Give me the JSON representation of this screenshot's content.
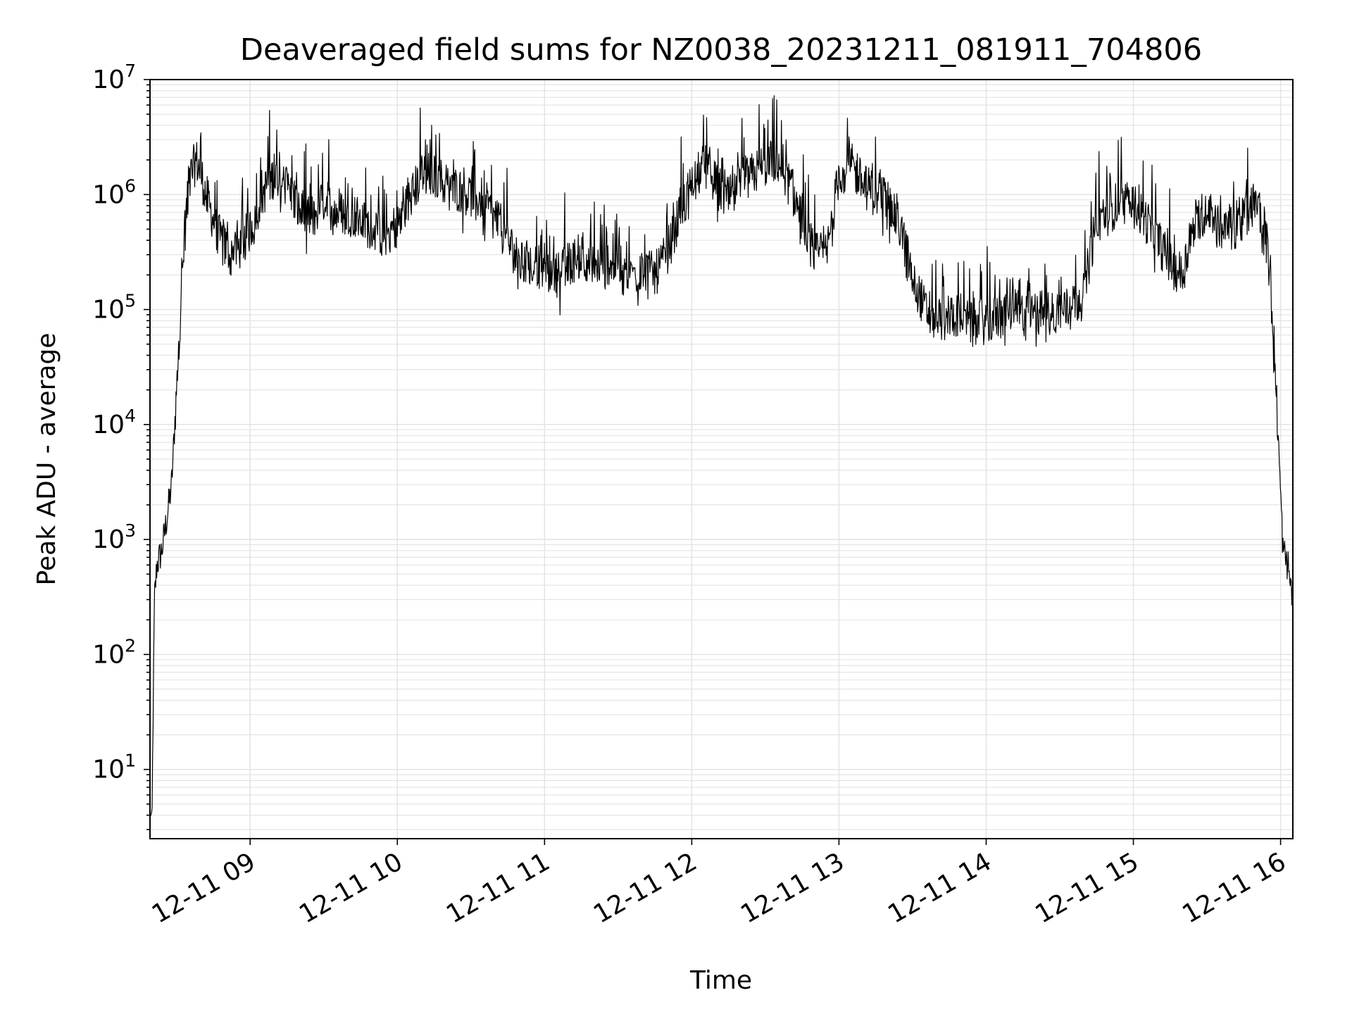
{
  "chart_data": {
    "type": "line",
    "title": "Deaveraged field sums for NZ0038_20231211_081911_704806",
    "xlabel": "Time",
    "ylabel": "Peak ADU - average",
    "yscale": "log",
    "ylim": [
      2.5,
      10000000.0
    ],
    "xlim": [
      "2023-12-11 08:19:11",
      "2023-12-11 16:05:00"
    ],
    "x_ticks": [
      {
        "value": "2023-12-11 09:00",
        "label": "12-11 09"
      },
      {
        "value": "2023-12-11 10:00",
        "label": "12-11 10"
      },
      {
        "value": "2023-12-11 11:00",
        "label": "12-11 11"
      },
      {
        "value": "2023-12-11 12:00",
        "label": "12-11 12"
      },
      {
        "value": "2023-12-11 13:00",
        "label": "12-11 13"
      },
      {
        "value": "2023-12-11 14:00",
        "label": "12-11 14"
      },
      {
        "value": "2023-12-11 15:00",
        "label": "12-11 15"
      },
      {
        "value": "2023-12-11 16:00",
        "label": "12-11 16"
      }
    ],
    "y_ticks": [
      {
        "value": 10,
        "base": "10",
        "exp": "1"
      },
      {
        "value": 100,
        "base": "10",
        "exp": "2"
      },
      {
        "value": 1000,
        "base": "10",
        "exp": "3"
      },
      {
        "value": 10000,
        "base": "10",
        "exp": "4"
      },
      {
        "value": 100000,
        "base": "10",
        "exp": "5"
      },
      {
        "value": 1000000,
        "base": "10",
        "exp": "6"
      },
      {
        "value": 10000000,
        "base": "10",
        "exp": "7"
      }
    ],
    "grid": "major and minor",
    "line_color": "#000000",
    "series": [
      {
        "x": [
          "2023-12-11 08:19:11",
          "2023-12-11 08:20",
          "2023-12-11 08:21",
          "2023-12-11 08:22",
          "2023-12-11 08:24",
          "2023-12-11 08:26",
          "2023-12-11 08:28",
          "2023-12-11 08:30",
          "2023-12-11 08:32",
          "2023-12-11 08:34",
          "2023-12-11 08:36",
          "2023-12-11 08:38",
          "2023-12-11 08:40",
          "2023-12-11 08:42",
          "2023-12-11 08:45",
          "2023-12-11 08:48",
          "2023-12-11 08:52",
          "2023-12-11 08:56",
          "2023-12-11 09:00",
          "2023-12-11 09:05",
          "2023-12-11 09:10",
          "2023-12-11 09:15",
          "2023-12-11 09:20",
          "2023-12-11 09:25",
          "2023-12-11 09:30",
          "2023-12-11 09:35",
          "2023-12-11 09:40",
          "2023-12-11 09:45",
          "2023-12-11 09:50",
          "2023-12-11 09:55",
          "2023-12-11 10:00",
          "2023-12-11 10:05",
          "2023-12-11 10:10",
          "2023-12-11 10:15",
          "2023-12-11 10:20",
          "2023-12-11 10:25",
          "2023-12-11 10:30",
          "2023-12-11 10:35",
          "2023-12-11 10:40",
          "2023-12-11 10:45",
          "2023-12-11 10:50",
          "2023-12-11 10:55",
          "2023-12-11 11:00",
          "2023-12-11 11:05",
          "2023-12-11 11:10",
          "2023-12-11 11:15",
          "2023-12-11 11:20",
          "2023-12-11 11:25",
          "2023-12-11 11:30",
          "2023-12-11 11:35",
          "2023-12-11 11:40",
          "2023-12-11 11:45",
          "2023-12-11 11:50",
          "2023-12-11 11:55",
          "2023-12-11 12:00",
          "2023-12-11 12:05",
          "2023-12-11 12:10",
          "2023-12-11 12:15",
          "2023-12-11 12:20",
          "2023-12-11 12:25",
          "2023-12-11 12:30",
          "2023-12-11 12:35",
          "2023-12-11 12:40",
          "2023-12-11 12:45",
          "2023-12-11 12:50",
          "2023-12-11 12:55",
          "2023-12-11 13:00",
          "2023-12-11 13:05",
          "2023-12-11 13:10",
          "2023-12-11 13:15",
          "2023-12-11 13:20",
          "2023-12-11 13:25",
          "2023-12-11 13:30",
          "2023-12-11 13:35",
          "2023-12-11 13:40",
          "2023-12-11 13:45",
          "2023-12-11 13:50",
          "2023-12-11 13:55",
          "2023-12-11 14:00",
          "2023-12-11 14:05",
          "2023-12-11 14:10",
          "2023-12-11 14:15",
          "2023-12-11 14:20",
          "2023-12-11 14:25",
          "2023-12-11 14:30",
          "2023-12-11 14:35",
          "2023-12-11 14:40",
          "2023-12-11 14:45",
          "2023-12-11 14:50",
          "2023-12-11 14:55",
          "2023-12-11 15:00",
          "2023-12-11 15:05",
          "2023-12-11 15:10",
          "2023-12-11 15:15",
          "2023-12-11 15:20",
          "2023-12-11 15:25",
          "2023-12-11 15:30",
          "2023-12-11 15:35",
          "2023-12-11 15:40",
          "2023-12-11 15:45",
          "2023-12-11 15:50",
          "2023-12-11 15:53",
          "2023-12-11 15:55",
          "2023-12-11 15:57",
          "2023-12-11 15:59",
          "2023-12-11 16:01",
          "2023-12-11 16:03",
          "2023-12-11 16:05"
        ],
        "y": [
          4,
          4,
          300,
          600,
          800,
          1500,
          3000,
          20000,
          150000,
          700000,
          1500000,
          2000000,
          1500000,
          1000000,
          600000,
          400000,
          300000,
          350000,
          500000,
          1000000,
          1500000,
          1200000,
          700000,
          600000,
          900000,
          700000,
          700000,
          600000,
          500000,
          450000,
          550000,
          900000,
          1500000,
          1500000,
          1200000,
          1100000,
          1000000,
          900000,
          600000,
          400000,
          250000,
          250000,
          220000,
          200000,
          250000,
          300000,
          250000,
          250000,
          280000,
          200000,
          220000,
          200000,
          300000,
          700000,
          1200000,
          1800000,
          1200000,
          900000,
          1200000,
          1500000,
          1800000,
          2000000,
          1200000,
          600000,
          300000,
          300000,
          1500000,
          1800000,
          1200000,
          1000000,
          900000,
          500000,
          200000,
          100000,
          80000,
          90000,
          90000,
          70000,
          80000,
          85000,
          100000,
          90000,
          100000,
          90000,
          100000,
          100000,
          150000,
          600000,
          700000,
          900000,
          800000,
          600000,
          400000,
          250000,
          200000,
          600000,
          700000,
          500000,
          500000,
          600000,
          900000,
          600000,
          300000,
          70000,
          8000,
          800,
          600,
          300
        ]
      }
    ]
  }
}
